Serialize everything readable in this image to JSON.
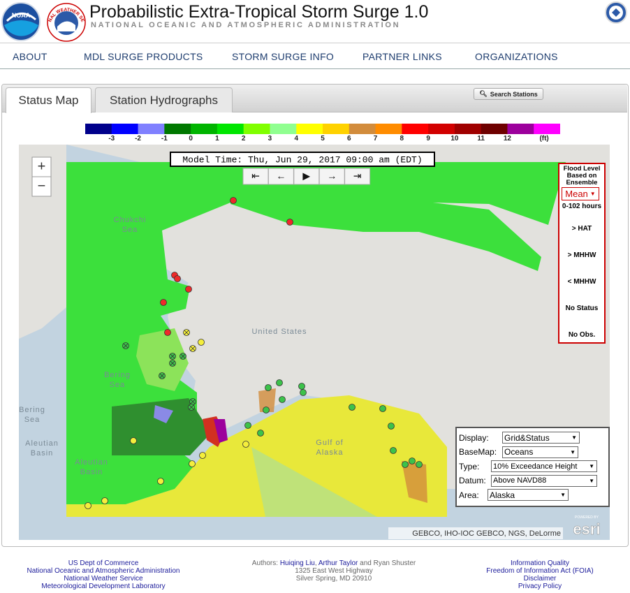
{
  "header": {
    "title": "Probabilistic Extra-Tropical Storm Surge 1.0",
    "subtitle": "NATIONAL OCEANIC AND ATMOSPHERIC ADMINISTRATION",
    "noaa_logo": "NOAA",
    "nws_logo": "NATIONAL WEATHER SERVICE"
  },
  "nav": [
    "ABOUT",
    "MDL SURGE PRODUCTS",
    "STORM SURGE INFO",
    "PARTNER LINKS",
    "ORGANIZATIONS"
  ],
  "tabs": [
    "Status Map",
    "Station Hydrographs"
  ],
  "search_button": "Search Stations",
  "color_scale": {
    "labels": [
      "-3",
      "-2",
      "-1",
      "0",
      "1",
      "2",
      "3",
      "4",
      "5",
      "6",
      "7",
      "8",
      "9",
      "10",
      "11",
      "12",
      "(ft)"
    ],
    "colors": [
      "#00008b",
      "#0000ff",
      "#8080ff",
      "#007800",
      "#00b400",
      "#00e600",
      "#80ff00",
      "#90ff90",
      "#ffff00",
      "#ffd200",
      "#d28c3c",
      "#ff8c00",
      "#ff0000",
      "#d20000",
      "#a00000",
      "#6e0000",
      "#9c009c",
      "#ff00ff"
    ]
  },
  "map": {
    "model_time": "Model Time: Thu, Jun 29, 2017 09:00 am (EDT)",
    "zoom": [
      "+",
      "−"
    ],
    "playback": [
      "⇤",
      "←",
      "▶",
      "→",
      "⇥"
    ],
    "place_labels": [
      {
        "lines": [
          "Chukchi",
          "Sea"
        ]
      },
      {
        "lines": [
          "United States"
        ]
      },
      {
        "lines": [
          "Bering",
          "Sea"
        ]
      },
      {
        "lines": [
          "Bering",
          "Sea"
        ]
      },
      {
        "lines": [
          "Aleutian",
          "Basin"
        ]
      },
      {
        "lines": [
          "Aleutian",
          "Basin"
        ]
      },
      {
        "lines": [
          "Gulf of",
          "Alaska"
        ]
      }
    ],
    "attribution": "GEBCO, IHO-IOC GEBCO, NGS, DeLorme",
    "esri_powered": "POWERED BY",
    "esri": "esri"
  },
  "legend": {
    "title": [
      "Flood Level",
      "Based on",
      "Ensemble"
    ],
    "statistic": "Mean",
    "range": "0-102 hours",
    "items": [
      "> HAT",
      "> MHHW",
      "< MHHW",
      "No Status",
      "No Obs."
    ]
  },
  "controls": [
    {
      "label": "Display:",
      "value": "Grid&Status"
    },
    {
      "label": "BaseMap:",
      "value": "Oceans"
    },
    {
      "label": "Type:",
      "value": "10% Exceedance Height"
    },
    {
      "label": "Datum:",
      "value": "Above NAVD88"
    },
    {
      "label": "Area:",
      "value": "Alaska"
    }
  ],
  "footer": {
    "left": [
      "US Dept of Commerce",
      "National Oceanic and Atmospheric Administration",
      "National Weather Service",
      "Meteorological Development Laboratory"
    ],
    "authors": [
      {
        "text": "Authors: "
      },
      {
        "text": "Huiqing Liu",
        "link": true
      },
      {
        "text": ", "
      },
      {
        "text": "Arthur Taylor",
        "link": true
      },
      {
        "text": " and Ryan Shuster"
      }
    ],
    "address": [
      "1325 East West Highway",
      "Silver Spring, MD 20910"
    ],
    "right": [
      "Information Quality",
      "Freedom of Information Act (FOIA)",
      "Disclaimer",
      "Privacy Policy"
    ]
  }
}
